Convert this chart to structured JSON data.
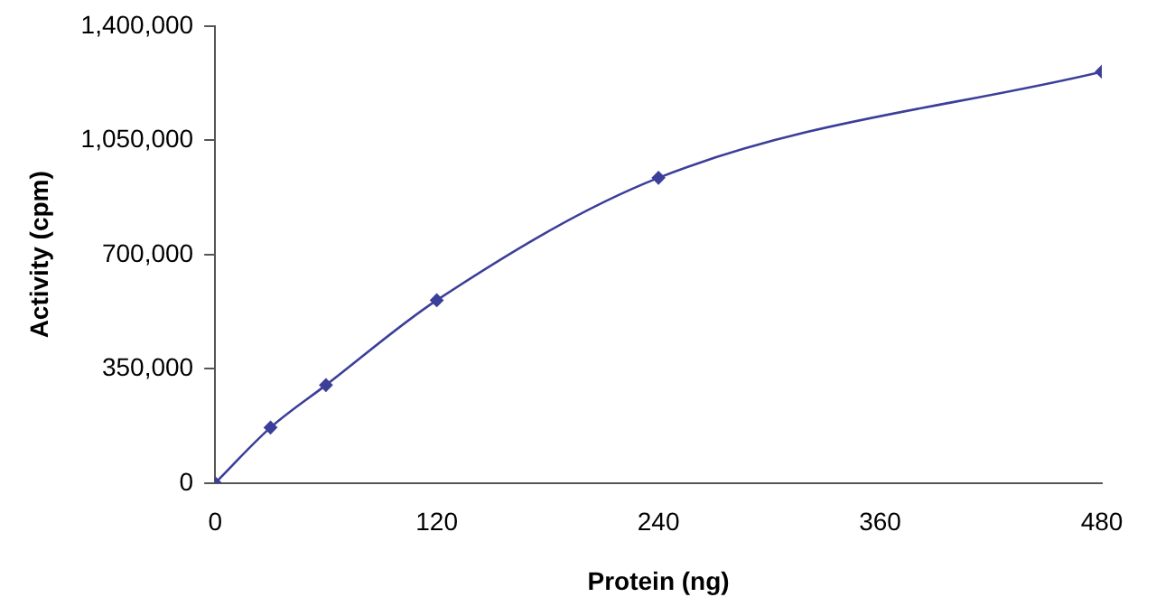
{
  "chart_data": {
    "type": "line",
    "xlabel": "Protein (ng)",
    "ylabel": "Activity (cpm)",
    "x": [
      0,
      30,
      60,
      120,
      240,
      480
    ],
    "series": [
      {
        "color": "#3c3f99",
        "values": [
          0,
          170000,
          300000,
          560000,
          935000,
          1260000
        ]
      }
    ],
    "xlim": [
      0,
      480
    ],
    "xticks": [
      0,
      120,
      240,
      360,
      480
    ],
    "ylim": [
      0,
      1400000
    ],
    "yticks": [
      0,
      {
        "value": 350000,
        "label": "350,000"
      },
      {
        "value": 700000,
        "label": "700,000"
      },
      {
        "value": 1050000,
        "label": "1,050,000"
      },
      {
        "value": 1400000,
        "label": "1,400,000"
      }
    ],
    "grid": false,
    "legend": false,
    "marker": "diamond",
    "line_style": "solid"
  }
}
